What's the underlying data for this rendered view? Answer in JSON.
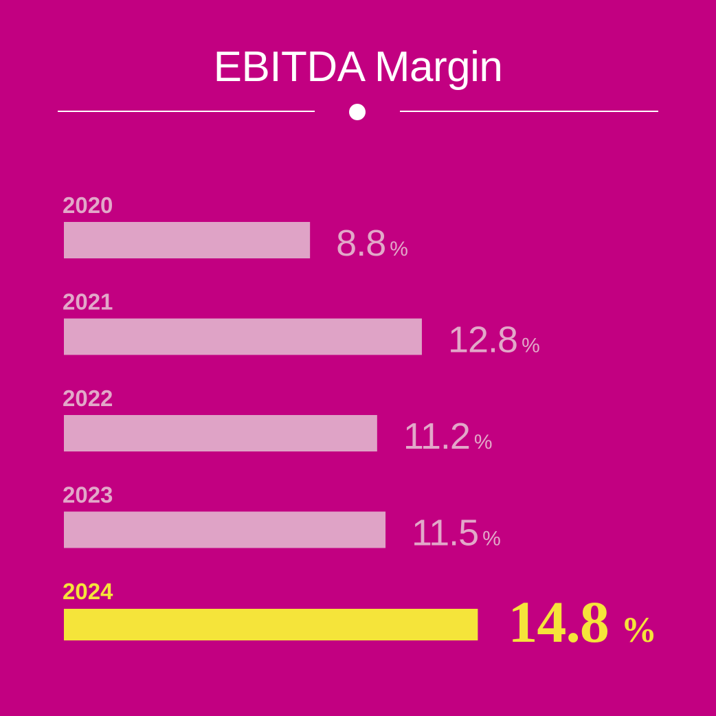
{
  "header": {
    "title": "EBITDA Margin"
  },
  "colors": {
    "background": "#c20081",
    "bar": "#dfa3c6",
    "bar_text": "#e2a8c9",
    "highlight": "#f5e43a",
    "title": "#ffffff"
  },
  "chart_data": {
    "type": "bar",
    "orientation": "horizontal",
    "title": "EBITDA Margin",
    "unit": "%",
    "categories": [
      "2020",
      "2021",
      "2022",
      "2023",
      "2024"
    ],
    "values": [
      8.8,
      12.8,
      11.2,
      11.5,
      14.8
    ],
    "value_labels": [
      "8.8",
      "12.8",
      "11.2",
      "11.5",
      "14.8"
    ],
    "highlight_category": "2024",
    "xlabel": "",
    "ylabel": "",
    "grid": false,
    "legend": "none"
  }
}
